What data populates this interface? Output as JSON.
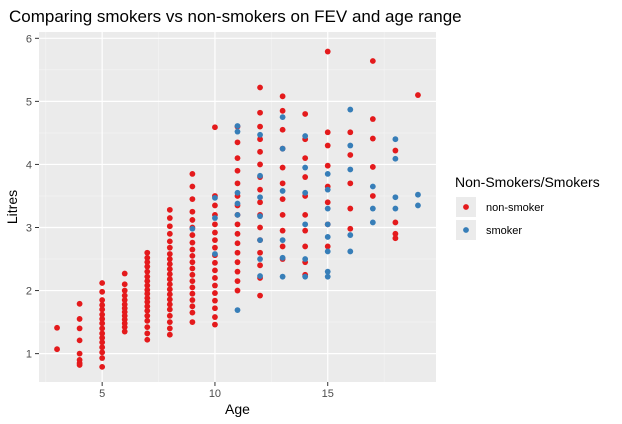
{
  "chart_data": {
    "type": "scatter",
    "title": "Comparing smokers vs non-smokers on FEV and age range",
    "xlabel": "Age",
    "ylabel": "Litres",
    "xlim": [
      2.2,
      19.8
    ],
    "ylim": [
      0.55,
      6.1
    ],
    "x_ticks": [
      5,
      10,
      15
    ],
    "y_ticks": [
      1,
      2,
      3,
      4,
      5,
      6
    ],
    "grid": true,
    "legend": {
      "title": "Non-Smokers/Smokers",
      "placement": "right",
      "entries": [
        {
          "label": "non-smoker",
          "color": "#E41A1C"
        },
        {
          "label": "smoker",
          "color": "#377EB8"
        }
      ]
    },
    "series": [
      {
        "name": "non-smoker",
        "color": "#E41A1C",
        "points": [
          [
            3,
            1.41
          ],
          [
            3,
            1.07
          ],
          [
            4,
            1.79
          ],
          [
            4,
            1.55
          ],
          [
            4,
            1.4
          ],
          [
            4,
            1.21
          ],
          [
            4,
            1.0
          ],
          [
            4,
            0.9
          ],
          [
            4,
            0.85
          ],
          [
            4,
            0.82
          ],
          [
            5,
            2.12
          ],
          [
            5,
            1.98
          ],
          [
            5,
            1.85
          ],
          [
            5,
            1.77
          ],
          [
            5,
            1.7
          ],
          [
            5,
            1.62
          ],
          [
            5,
            1.55
          ],
          [
            5,
            1.48
          ],
          [
            5,
            1.4
          ],
          [
            5,
            1.32
          ],
          [
            5,
            1.25
          ],
          [
            5,
            1.18
          ],
          [
            5,
            1.1
          ],
          [
            5,
            1.02
          ],
          [
            5,
            0.93
          ],
          [
            5,
            0.79
          ],
          [
            6,
            2.27
          ],
          [
            6,
            2.1
          ],
          [
            6,
            2.0
          ],
          [
            6,
            1.92
          ],
          [
            6,
            1.85
          ],
          [
            6,
            1.78
          ],
          [
            6,
            1.72
          ],
          [
            6,
            1.66
          ],
          [
            6,
            1.6
          ],
          [
            6,
            1.54
          ],
          [
            6,
            1.48
          ],
          [
            6,
            1.42
          ],
          [
            6,
            1.35
          ],
          [
            7,
            2.6
          ],
          [
            7,
            2.52
          ],
          [
            7,
            2.45
          ],
          [
            7,
            2.38
          ],
          [
            7,
            2.3
          ],
          [
            7,
            2.22
          ],
          [
            7,
            2.15
          ],
          [
            7,
            2.08
          ],
          [
            7,
            2.01
          ],
          [
            7,
            1.95
          ],
          [
            7,
            1.88
          ],
          [
            7,
            1.82
          ],
          [
            7,
            1.75
          ],
          [
            7,
            1.68
          ],
          [
            7,
            1.6
          ],
          [
            7,
            1.52
          ],
          [
            7,
            1.42
          ],
          [
            7,
            1.32
          ],
          [
            7,
            1.22
          ],
          [
            8,
            3.28
          ],
          [
            8,
            3.15
          ],
          [
            8,
            3.02
          ],
          [
            8,
            2.9
          ],
          [
            8,
            2.78
          ],
          [
            8,
            2.68
          ],
          [
            8,
            2.58
          ],
          [
            8,
            2.5
          ],
          [
            8,
            2.42
          ],
          [
            8,
            2.34
          ],
          [
            8,
            2.26
          ],
          [
            8,
            2.18
          ],
          [
            8,
            2.1
          ],
          [
            8,
            2.02
          ],
          [
            8,
            1.94
          ],
          [
            8,
            1.86
          ],
          [
            8,
            1.78
          ],
          [
            8,
            1.7
          ],
          [
            8,
            1.6
          ],
          [
            8,
            1.5
          ],
          [
            8,
            1.4
          ],
          [
            8,
            1.3
          ],
          [
            9,
            3.85
          ],
          [
            9,
            3.65
          ],
          [
            9,
            3.45
          ],
          [
            9,
            3.25
          ],
          [
            9,
            3.12
          ],
          [
            9,
            3.0
          ],
          [
            9,
            2.88
          ],
          [
            9,
            2.76
          ],
          [
            9,
            2.65
          ],
          [
            9,
            2.55
          ],
          [
            9,
            2.45
          ],
          [
            9,
            2.35
          ],
          [
            9,
            2.25
          ],
          [
            9,
            2.15
          ],
          [
            9,
            2.05
          ],
          [
            9,
            1.95
          ],
          [
            9,
            1.85
          ],
          [
            9,
            1.75
          ],
          [
            9,
            1.65
          ],
          [
            9,
            1.5
          ],
          [
            10,
            4.59
          ],
          [
            10,
            3.5
          ],
          [
            10,
            3.35
          ],
          [
            10,
            3.2
          ],
          [
            10,
            3.05
          ],
          [
            10,
            2.92
          ],
          [
            10,
            2.8
          ],
          [
            10,
            2.68
          ],
          [
            10,
            2.56
          ],
          [
            10,
            2.44
          ],
          [
            10,
            2.32
          ],
          [
            10,
            2.2
          ],
          [
            10,
            2.08
          ],
          [
            10,
            1.96
          ],
          [
            10,
            1.84
          ],
          [
            10,
            1.72
          ],
          [
            10,
            1.58
          ],
          [
            10,
            1.46
          ],
          [
            11,
            4.6
          ],
          [
            11,
            4.35
          ],
          [
            11,
            4.1
          ],
          [
            11,
            3.9
          ],
          [
            11,
            3.7
          ],
          [
            11,
            3.5
          ],
          [
            11,
            3.35
          ],
          [
            11,
            3.2
          ],
          [
            11,
            3.05
          ],
          [
            11,
            2.9
          ],
          [
            11,
            2.75
          ],
          [
            11,
            2.6
          ],
          [
            11,
            2.45
          ],
          [
            11,
            2.3
          ],
          [
            11,
            2.15
          ],
          [
            11,
            2.0
          ],
          [
            12,
            5.22
          ],
          [
            12,
            4.82
          ],
          [
            12,
            4.6
          ],
          [
            12,
            4.4
          ],
          [
            12,
            4.2
          ],
          [
            12,
            4.0
          ],
          [
            12,
            3.8
          ],
          [
            12,
            3.6
          ],
          [
            12,
            3.4
          ],
          [
            12,
            3.2
          ],
          [
            12,
            3.0
          ],
          [
            12,
            2.8
          ],
          [
            12,
            2.6
          ],
          [
            12,
            2.4
          ],
          [
            12,
            2.2
          ],
          [
            12,
            1.92
          ],
          [
            13,
            5.08
          ],
          [
            13,
            4.85
          ],
          [
            13,
            4.55
          ],
          [
            13,
            4.25
          ],
          [
            13,
            3.95
          ],
          [
            13,
            3.7
          ],
          [
            13,
            3.45
          ],
          [
            13,
            3.2
          ],
          [
            13,
            2.95
          ],
          [
            13,
            2.7
          ],
          [
            13,
            2.5
          ],
          [
            14,
            4.8
          ],
          [
            14,
            4.4
          ],
          [
            14,
            4.1
          ],
          [
            14,
            3.8
          ],
          [
            14,
            3.5
          ],
          [
            14,
            3.2
          ],
          [
            14,
            2.95
          ],
          [
            14,
            2.7
          ],
          [
            14,
            2.45
          ],
          [
            14,
            2.25
          ],
          [
            15,
            5.79
          ],
          [
            15,
            4.51
          ],
          [
            15,
            4.3
          ],
          [
            15,
            3.98
          ],
          [
            15,
            3.65
          ],
          [
            15,
            3.4
          ],
          [
            15,
            3.05
          ],
          [
            15,
            2.7
          ],
          [
            16,
            4.51
          ],
          [
            16,
            4.15
          ],
          [
            16,
            3.7
          ],
          [
            16,
            3.3
          ],
          [
            16,
            2.98
          ],
          [
            17,
            5.64
          ],
          [
            17,
            4.72
          ],
          [
            17,
            4.41
          ],
          [
            17,
            3.96
          ],
          [
            17,
            3.5
          ],
          [
            18,
            4.22
          ],
          [
            18,
            3.08
          ],
          [
            18,
            2.9
          ],
          [
            18,
            2.83
          ],
          [
            19,
            5.1
          ]
        ]
      },
      {
        "name": "smoker",
        "color": "#377EB8",
        "points": [
          [
            9,
            2.98
          ],
          [
            10,
            3.47
          ],
          [
            10,
            2.58
          ],
          [
            10,
            3.15
          ],
          [
            11,
            4.61
          ],
          [
            11,
            4.52
          ],
          [
            11,
            3.55
          ],
          [
            11,
            3.38
          ],
          [
            11,
            3.2
          ],
          [
            11,
            1.69
          ],
          [
            12,
            4.47
          ],
          [
            12,
            3.82
          ],
          [
            12,
            3.48
          ],
          [
            12,
            3.18
          ],
          [
            12,
            2.8
          ],
          [
            12,
            2.5
          ],
          [
            12,
            2.23
          ],
          [
            13,
            4.75
          ],
          [
            13,
            4.25
          ],
          [
            13,
            3.58
          ],
          [
            13,
            2.8
          ],
          [
            13,
            2.52
          ],
          [
            13,
            2.22
          ],
          [
            14,
            4.45
          ],
          [
            14,
            3.95
          ],
          [
            14,
            3.55
          ],
          [
            14,
            3.05
          ],
          [
            14,
            2.5
          ],
          [
            14,
            2.22
          ],
          [
            15,
            3.85
          ],
          [
            15,
            3.6
          ],
          [
            15,
            3.3
          ],
          [
            15,
            3.05
          ],
          [
            15,
            2.85
          ],
          [
            15,
            2.62
          ],
          [
            15,
            2.3
          ],
          [
            15,
            2.22
          ],
          [
            16,
            4.87
          ],
          [
            16,
            4.3
          ],
          [
            16,
            3.92
          ],
          [
            16,
            2.88
          ],
          [
            16,
            2.62
          ],
          [
            17,
            3.65
          ],
          [
            17,
            3.3
          ],
          [
            17,
            3.08
          ],
          [
            18,
            4.4
          ],
          [
            18,
            4.09
          ],
          [
            18,
            3.48
          ],
          [
            18,
            3.3
          ],
          [
            19,
            3.52
          ],
          [
            19,
            3.35
          ]
        ]
      }
    ]
  }
}
